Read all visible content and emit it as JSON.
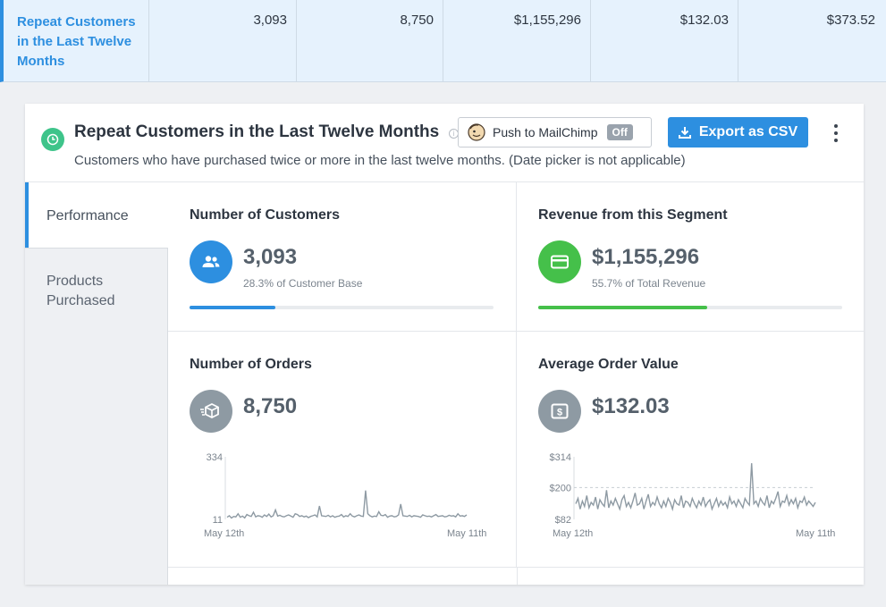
{
  "summary_row": {
    "name": "Repeat Customers in the Last Twelve Months",
    "customers": "3,093",
    "orders": "8,750",
    "revenue": "$1,155,296",
    "aov": "$132.03",
    "clv": "$373.52"
  },
  "card": {
    "title": "Repeat Customers in the Last Twelve Months",
    "subtitle": "Customers who have purchased twice or more in the last twelve months. (Date picker is not applicable)",
    "mailchimp_label": "Push to MailChimp",
    "mailchimp_state": "Off",
    "export_label": "Export as CSV"
  },
  "sidebar": {
    "tabs": [
      "Performance",
      "Products Purchased"
    ]
  },
  "panels": {
    "customers": {
      "title": "Number of Customers",
      "value": "3,093",
      "note": "28.3% of Customer Base",
      "progress": 0.283,
      "color": "#2d8fe0"
    },
    "revenue": {
      "title": "Revenue from this Segment",
      "value": "$1,155,296",
      "note": "55.7% of Total Revenue",
      "progress": 0.557,
      "color": "#45c04a"
    },
    "orders": {
      "title": "Number of Orders",
      "value": "8,750",
      "color": "#8e9aa3"
    },
    "aov": {
      "title": "Average Order Value",
      "value": "$132.03",
      "color": "#8e9aa3"
    }
  },
  "chart_data": [
    {
      "type": "line",
      "ymax_label": "334",
      "ymin_label": "11",
      "x_start_label": "May 12th",
      "x_end_label": "May 11th",
      "ylim": [
        11,
        334
      ],
      "values": [
        22,
        30,
        18,
        26,
        24,
        40,
        22,
        28,
        19,
        36,
        30,
        26,
        48,
        24,
        30,
        28,
        22,
        34,
        26,
        38,
        24,
        30,
        60,
        28,
        32,
        26,
        24,
        30,
        34,
        28,
        22,
        40,
        36,
        26,
        30,
        24,
        28,
        20,
        26,
        30,
        34,
        24,
        80,
        30,
        28,
        26,
        32,
        24,
        30,
        22,
        26,
        28,
        36,
        24,
        30,
        26,
        40,
        28,
        24,
        30,
        34,
        28,
        26,
        160,
        40,
        30,
        24,
        28,
        26,
        50,
        32,
        30,
        36,
        22,
        28,
        30,
        24,
        26,
        34,
        90,
        30,
        28,
        26,
        32,
        24,
        30,
        28,
        26,
        22,
        34,
        30,
        26,
        28,
        24,
        30,
        36,
        26,
        28,
        30,
        24,
        26,
        32,
        28,
        30,
        24,
        40,
        28,
        30,
        26,
        34
      ]
    },
    {
      "type": "line",
      "ymax_label": "$314",
      "ref_label": "$200",
      "ymin_label": "$82",
      "x_start_label": "May 12th",
      "x_end_label": "May 11th",
      "ylim": [
        82,
        314
      ],
      "ref_value": 200,
      "values": [
        140,
        160,
        120,
        150,
        130,
        170,
        125,
        145,
        135,
        165,
        120,
        155,
        140,
        130,
        190,
        125,
        150,
        135,
        160,
        140,
        120,
        155,
        170,
        130,
        145,
        125,
        150,
        180,
        135,
        140,
        160,
        120,
        150,
        175,
        130,
        145,
        135,
        165,
        140,
        125,
        150,
        130,
        160,
        145,
        120,
        155,
        140,
        135,
        170,
        125,
        150,
        145,
        130,
        160,
        140,
        125,
        150,
        135,
        165,
        130,
        145,
        155,
        120,
        140,
        160,
        130,
        150,
        135,
        145,
        125,
        165,
        140,
        150,
        130,
        155,
        140,
        125,
        160,
        145,
        135,
        290,
        140,
        150,
        130,
        160,
        145,
        135,
        170,
        125,
        150,
        140,
        160,
        185,
        130,
        150,
        145,
        170,
        135,
        155,
        140,
        160,
        125,
        150,
        145,
        165,
        135,
        150,
        140,
        130,
        145
      ]
    }
  ]
}
